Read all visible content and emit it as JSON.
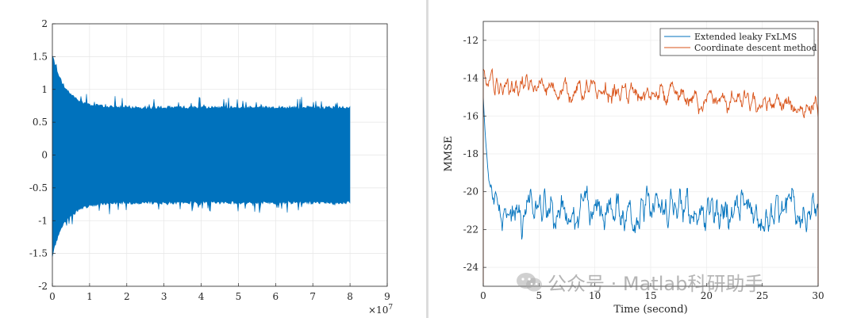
{
  "watermark": {
    "text": "公众号 · Matlab科研助手"
  },
  "chart_data": [
    {
      "type": "line",
      "xlim": [
        0,
        9
      ],
      "ylim": [
        -2,
        2
      ],
      "x_ticks": [
        0,
        1,
        2,
        3,
        4,
        5,
        6,
        7,
        8,
        9
      ],
      "y_ticks": [
        -2,
        -1.5,
        -1,
        -0.5,
        0,
        0.5,
        1,
        1.5,
        2
      ],
      "x_tick_labels": [
        "0",
        "1",
        "2",
        "3",
        "4",
        "5",
        "6",
        "7",
        "8",
        "9"
      ],
      "y_tick_labels": [
        "-2",
        "-1.5",
        "-1",
        "-0.5",
        "0",
        "0.5",
        "1",
        "1.5",
        "2"
      ],
      "x_exponent_label": "×10",
      "x_exponent_power": "7",
      "grid": true,
      "series": [
        {
          "color": "#0072BD",
          "x_end": 8,
          "initial_amplitude": 1.5,
          "steady_amplitude": 0.7,
          "peak_amplitude": 0.85
        }
      ]
    },
    {
      "type": "line",
      "xlim": [
        0,
        30
      ],
      "ylim": [
        -25,
        -11
      ],
      "x_ticks": [
        0,
        5,
        10,
        15,
        20,
        25,
        30
      ],
      "y_ticks": [
        -24,
        -22,
        -20,
        -18,
        -16,
        -14,
        -12
      ],
      "x_tick_labels": [
        "0",
        "5",
        "10",
        "15",
        "20",
        "25",
        "30"
      ],
      "y_tick_labels": [
        "-24",
        "-22",
        "-20",
        "-18",
        "-16",
        "-14",
        "-12"
      ],
      "xlabel": "Time (second)",
      "ylabel": "MMSE",
      "grid": true,
      "legend_position": "top-right",
      "series": [
        {
          "name": "Extended leaky FxLMS",
          "color": "#0072BD",
          "start_value": -15,
          "steady_value": -21,
          "fluctuation": 1.0
        },
        {
          "name": "Coordinate descent method",
          "color": "#D95319",
          "start_value": -14.3,
          "end_value": -15.6,
          "fluctuation": 0.6
        }
      ]
    }
  ]
}
